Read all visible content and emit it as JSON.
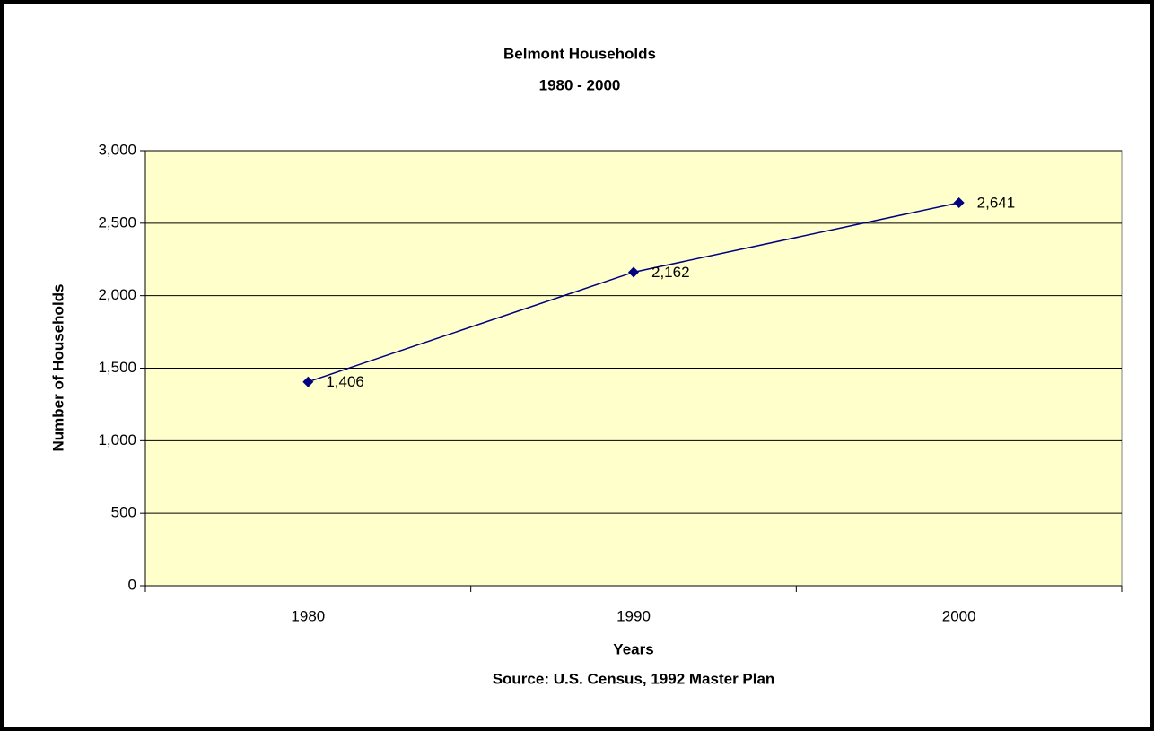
{
  "chart_data": {
    "type": "line",
    "title": "Belmont Households",
    "subtitle": "1980 - 2000",
    "x_label": "Years",
    "source": "Source: U.S. Census, 1992 Master Plan",
    "y_label": "Number of Households",
    "categories": [
      "1980",
      "1990",
      "2000"
    ],
    "values": [
      1406,
      2162,
      2641
    ],
    "value_labels": [
      "1,406",
      "2,162",
      "2,641"
    ],
    "color": "#000080",
    "background": "#ffffcc",
    "ylim": [
      0,
      3000
    ],
    "yticks": [
      0,
      500,
      {
        "value": 1000,
        "label": "1,000"
      },
      {
        "value": 1500,
        "label": "1,500"
      },
      {
        "value": 2000,
        "label": "2,000"
      },
      {
        "value": 2500,
        "label": "2,500"
      },
      {
        "value": 3000,
        "label": "3,000"
      }
    ],
    "grid": true
  }
}
